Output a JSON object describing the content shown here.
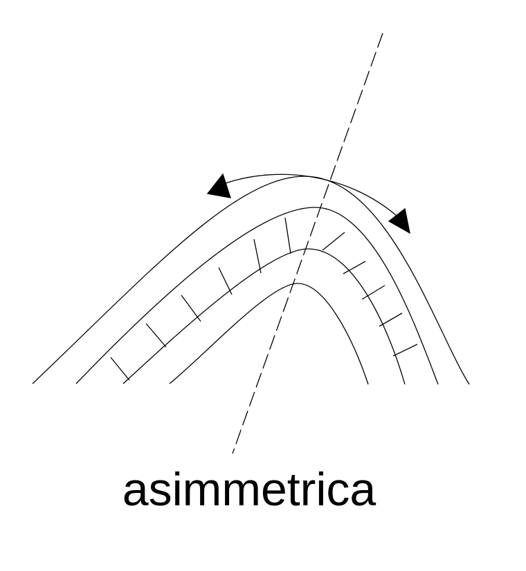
{
  "caption": "asimmetrica",
  "colors": {
    "stroke": "#000000",
    "background": "#ffffff"
  },
  "figure": {
    "type": "asymmetric-fold",
    "elements": [
      "fold-layer-line",
      "axial-plane-line",
      "bed-thickness-tick",
      "shear-arrow"
    ]
  }
}
